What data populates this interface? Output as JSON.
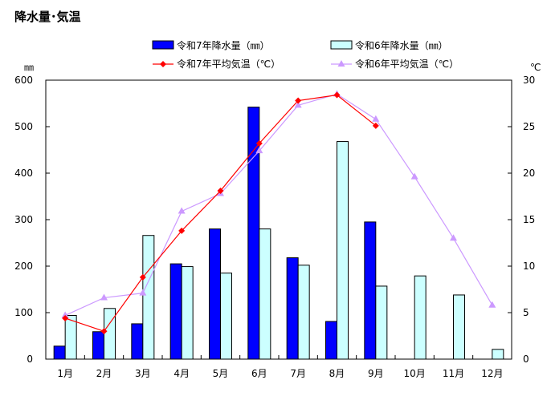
{
  "chart_data": {
    "type": "bar+line",
    "title": "降水量･気温",
    "categories": [
      "1月",
      "2月",
      "3月",
      "4月",
      "5月",
      "6月",
      "7月",
      "8月",
      "9月",
      "10月",
      "11月",
      "12月"
    ],
    "left_axis": {
      "unit": "㎜",
      "ylim": [
        0,
        600
      ],
      "ticks": [
        0,
        100,
        200,
        300,
        400,
        500,
        600
      ]
    },
    "right_axis": {
      "unit": "℃",
      "ylim": [
        0,
        30
      ],
      "ticks": [
        0,
        5,
        10,
        15,
        20,
        25,
        30
      ]
    },
    "grid": false,
    "legend_position": "top",
    "series": [
      {
        "name": "令和7年降水量（㎜）",
        "type": "bar",
        "axis": "left",
        "color": "#0000ff",
        "values": [
          28,
          59,
          76,
          205,
          280,
          542,
          218,
          81,
          295,
          null,
          null,
          null
        ]
      },
      {
        "name": "令和6年降水量（㎜）",
        "type": "bar",
        "axis": "left",
        "color": "#ccffff",
        "values": [
          94,
          109,
          266,
          199,
          185,
          280,
          202,
          468,
          157,
          179,
          138,
          21
        ]
      },
      {
        "name": "令和7年平均気温（℃）",
        "type": "line",
        "axis": "right",
        "color": "#ff0000",
        "marker": "diamond",
        "values": [
          4.4,
          3.0,
          8.8,
          13.8,
          18.1,
          23.2,
          27.8,
          28.4,
          25.1,
          null,
          null,
          null
        ]
      },
      {
        "name": "令和6年平均気温（℃）",
        "type": "line",
        "axis": "right",
        "color": "#cc99ff",
        "marker": "triangle",
        "values": [
          4.7,
          6.6,
          7.1,
          15.9,
          17.8,
          22.4,
          27.3,
          28.5,
          25.8,
          19.6,
          13.0,
          5.8
        ]
      }
    ]
  }
}
